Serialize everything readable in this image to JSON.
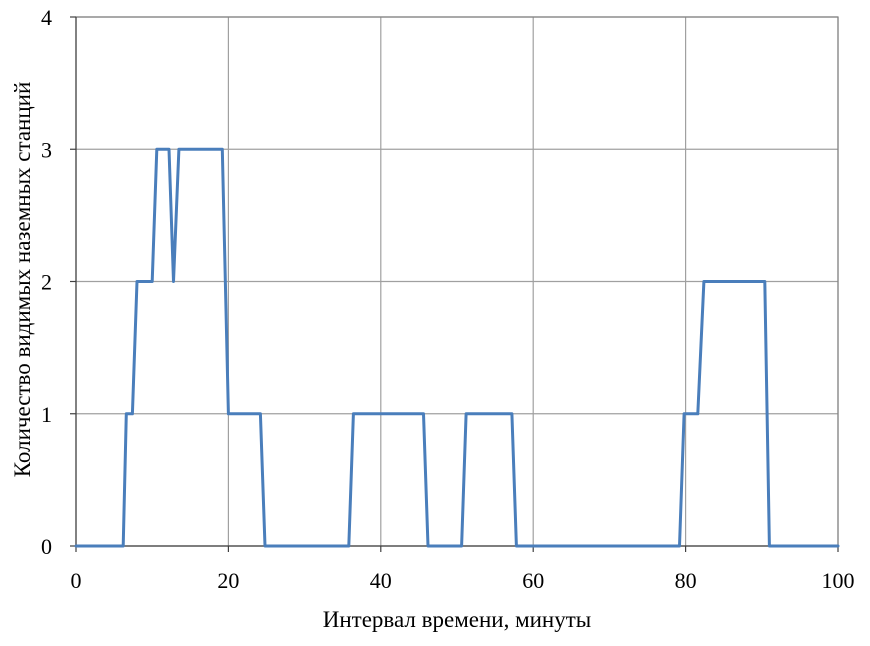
{
  "chart_data": {
    "type": "line",
    "title": "",
    "xlabel": "Интервал времени, минуты",
    "ylabel": "Количество видимых наземных станций",
    "xlim": [
      0,
      100
    ],
    "ylim": [
      0,
      4
    ],
    "x_ticks": [
      0,
      20,
      40,
      60,
      80,
      100
    ],
    "y_ticks": [
      0,
      1,
      2,
      3,
      4
    ],
    "grid": true,
    "legend": "none",
    "color": "#4a7ebb",
    "series": [
      {
        "x": [
          0,
          6.2,
          6.6,
          7.4,
          8.0,
          10.0,
          10.6,
          12.2,
          12.8,
          13.5,
          19.2,
          20.0,
          24.2,
          24.8,
          35.8,
          36.4,
          45.6,
          46.2,
          50.6,
          51.2,
          57.2,
          57.8,
          79.2,
          79.8,
          81.6,
          82.4,
          90.4,
          91.0,
          100
        ],
        "y": [
          0,
          0,
          1,
          1,
          2,
          2,
          3,
          3,
          2,
          3,
          3,
          1,
          1,
          0,
          0,
          1,
          1,
          0,
          0,
          1,
          1,
          0,
          0,
          1,
          1,
          2,
          2,
          0,
          0
        ]
      }
    ]
  }
}
